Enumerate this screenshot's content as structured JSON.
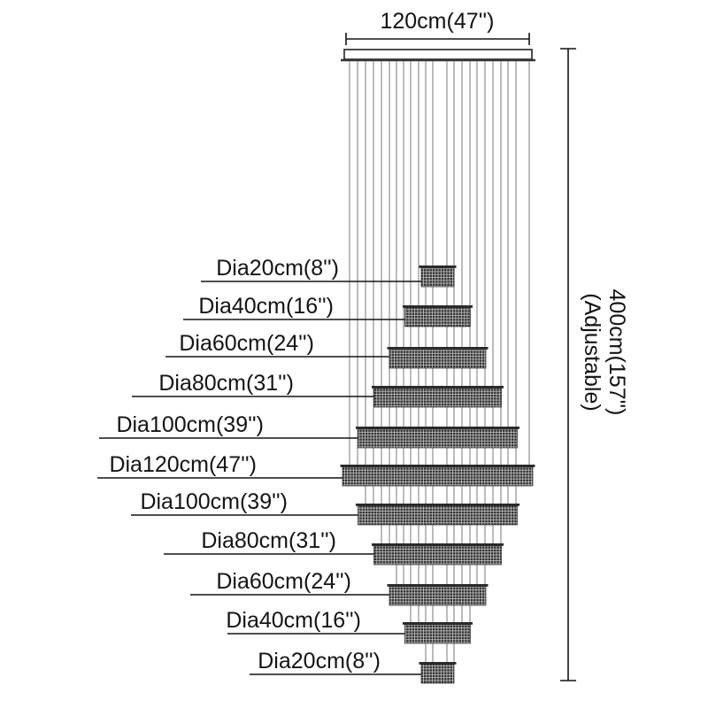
{
  "diagram": {
    "title": "chandelier-dimension-diagram",
    "top_width_label": "120cm(47'')",
    "height_label": {
      "line1": "400cm(157'')",
      "line2": "(Adjustable)"
    },
    "rings": [
      {
        "label": "Dia20cm(8'')",
        "diameter_cm": 20,
        "inches": 8
      },
      {
        "label": "Dia40cm(16'')",
        "diameter_cm": 40,
        "inches": 16
      },
      {
        "label": "Dia60cm(24'')",
        "diameter_cm": 60,
        "inches": 24
      },
      {
        "label": "Dia80cm(31'')",
        "diameter_cm": 80,
        "inches": 31
      },
      {
        "label": "Dia100cm(39'')",
        "diameter_cm": 100,
        "inches": 39
      },
      {
        "label": "Dia120cm(47'')",
        "diameter_cm": 120,
        "inches": 47
      },
      {
        "label": "Dia100cm(39'')",
        "diameter_cm": 100,
        "inches": 39
      },
      {
        "label": "Dia80cm(31'')",
        "diameter_cm": 80,
        "inches": 31
      },
      {
        "label": "Dia60cm(24'')",
        "diameter_cm": 60,
        "inches": 24
      },
      {
        "label": "Dia40cm(16'')",
        "diameter_cm": 40,
        "inches": 16
      },
      {
        "label": "Dia20cm(8'')",
        "diameter_cm": 20,
        "inches": 8
      }
    ],
    "colors": {
      "line": "#141414",
      "cable": "#8f8f8f",
      "ring_dark": "#2f2f2f",
      "ring_light": "#b8b8b8",
      "rim": "#2a2a2a"
    }
  }
}
